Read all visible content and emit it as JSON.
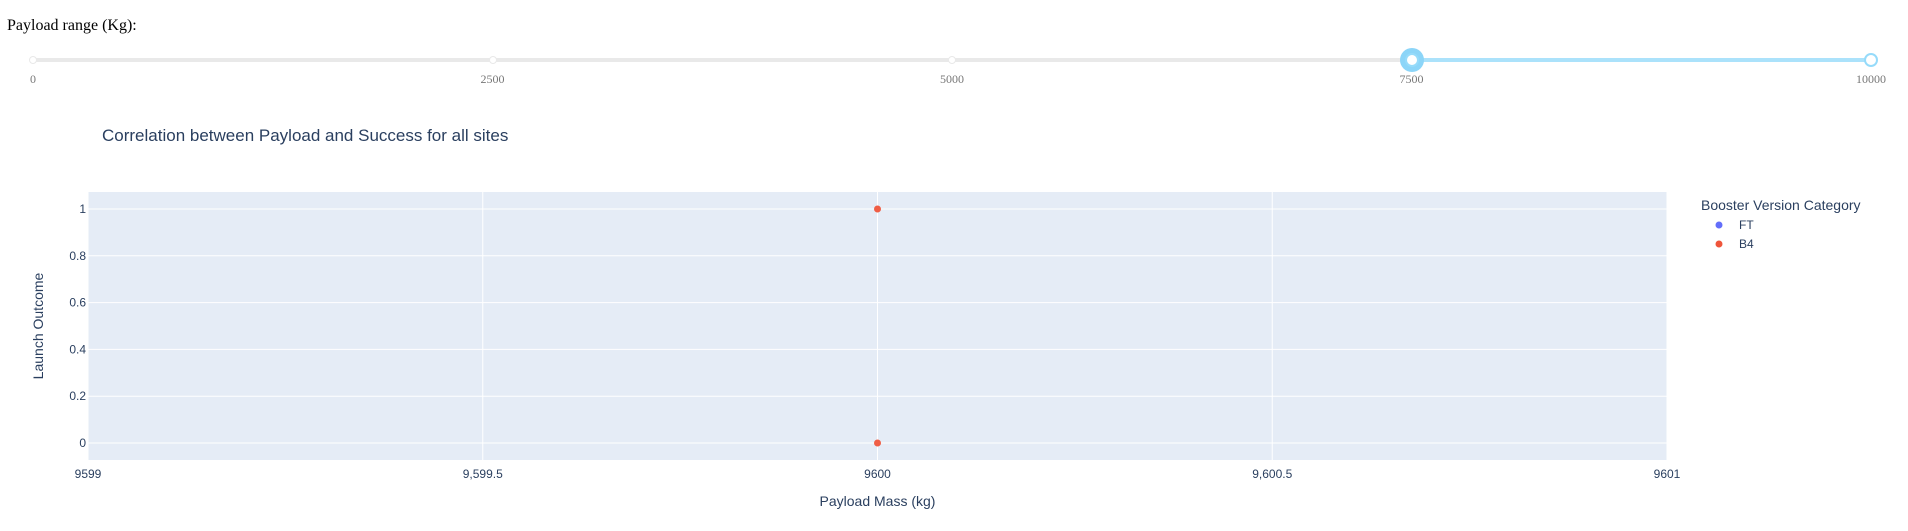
{
  "slider": {
    "label": "Payload range (Kg):",
    "min": 0,
    "max": 10000,
    "marks": [
      "0",
      "2500",
      "5000",
      "7500",
      "10000"
    ],
    "mark_values": [
      0,
      2500,
      5000,
      7500,
      10000
    ],
    "value": [
      7500,
      10000
    ],
    "track_color": "#abe2fb",
    "handle_color": "#96dbfa"
  },
  "chart_data": {
    "type": "scatter",
    "title": "Correlation between Payload and Success for all sites",
    "xlabel": "Payload Mass (kg)",
    "ylabel": "Launch Outcome",
    "xlim": [
      9599,
      9601
    ],
    "ylim": [
      0,
      1
    ],
    "x_ticks": [
      9599,
      9599.5,
      9600,
      9600.5,
      9601
    ],
    "x_tick_labels": [
      "9599",
      "9,599.5",
      "9600",
      "9,600.5",
      "9601"
    ],
    "y_ticks": [
      0,
      0.2,
      0.4,
      0.6,
      0.8,
      1
    ],
    "y_tick_labels": [
      "0",
      "0.2",
      "0.4",
      "0.6",
      "0.8",
      "1"
    ],
    "grid": true,
    "legend_title": "Booster Version Category",
    "legend_placement": "right",
    "plot_bg": "#e5ecf6",
    "series": [
      {
        "name": "FT",
        "color": "#636efa",
        "points": []
      },
      {
        "name": "B4",
        "color": "#ef553b",
        "points": [
          {
            "x": 9600,
            "y": 1
          },
          {
            "x": 9600,
            "y": 0
          }
        ]
      }
    ]
  }
}
